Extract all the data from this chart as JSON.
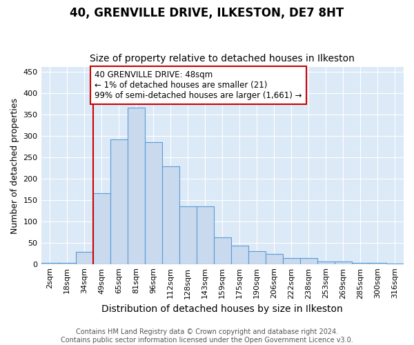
{
  "title": "40, GRENVILLE DRIVE, ILKESTON, DE7 8HT",
  "subtitle": "Size of property relative to detached houses in Ilkeston",
  "xlabel": "Distribution of detached houses by size in Ilkeston",
  "ylabel": "Number of detached properties",
  "categories": [
    "2sqm",
    "18sqm",
    "34sqm",
    "49sqm",
    "65sqm",
    "81sqm",
    "96sqm",
    "112sqm",
    "128sqm",
    "143sqm",
    "159sqm",
    "175sqm",
    "190sqm",
    "206sqm",
    "222sqm",
    "238sqm",
    "253sqm",
    "269sqm",
    "285sqm",
    "300sqm",
    "316sqm"
  ],
  "values": [
    2,
    2,
    28,
    165,
    291,
    365,
    285,
    228,
    135,
    135,
    62,
    43,
    30,
    23,
    14,
    14,
    6,
    6,
    2,
    2,
    1
  ],
  "bar_color": "#c9d9ee",
  "bar_edge_color": "#5b9bd5",
  "vline_pos": 2.5,
  "vline_color": "#cc0000",
  "annotation_text": "40 GRENVILLE DRIVE: 48sqm\n← 1% of detached houses are smaller (21)\n99% of semi-detached houses are larger (1,661) →",
  "annotation_box_facecolor": "#ffffff",
  "annotation_box_edgecolor": "#cc0000",
  "fig_facecolor": "#ffffff",
  "plot_facecolor": "#dce9f7",
  "grid_color": "#ffffff",
  "footer_line1": "Contains HM Land Registry data © Crown copyright and database right 2024.",
  "footer_line2": "Contains public sector information licensed under the Open Government Licence v3.0.",
  "ylim": [
    0,
    460
  ],
  "yticks": [
    0,
    50,
    100,
    150,
    200,
    250,
    300,
    350,
    400,
    450
  ],
  "title_fontsize": 12,
  "subtitle_fontsize": 10,
  "xlabel_fontsize": 10,
  "ylabel_fontsize": 9,
  "tick_fontsize": 8,
  "annot_fontsize": 8.5,
  "footer_fontsize": 7
}
